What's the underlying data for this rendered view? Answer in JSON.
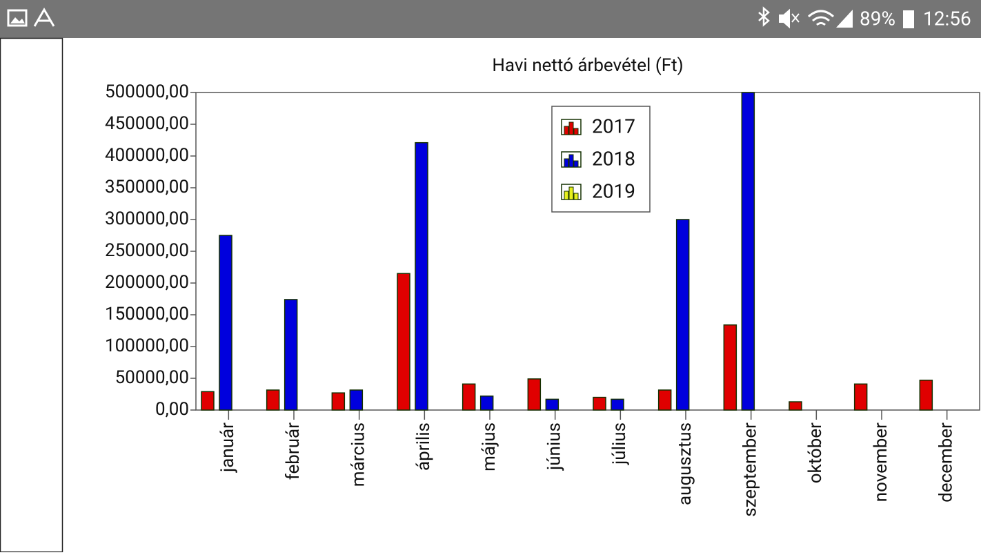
{
  "status_bar": {
    "battery": "89%",
    "time": "12:56"
  },
  "chart_data": {
    "type": "bar",
    "title": "Havi nettó árbevétel (Ft)",
    "categories": [
      "január",
      "február",
      "március",
      "április",
      "május",
      "június",
      "július",
      "augusztus",
      "szeptember",
      "október",
      "november",
      "december"
    ],
    "series": [
      {
        "name": "2017",
        "color": "#e00000",
        "values": [
          29000,
          31500,
          27000,
          215000,
          41000,
          49000,
          20000,
          31500,
          134000,
          13000,
          41000,
          47000
        ]
      },
      {
        "name": "2018",
        "color": "#0000dd",
        "values": [
          275000,
          174000,
          31500,
          421000,
          22000,
          17000,
          17000,
          300000,
          500000,
          0,
          0,
          0
        ]
      },
      {
        "name": "2019",
        "color": "#e6f01e",
        "values": [
          0,
          0,
          0,
          0,
          0,
          0,
          0,
          0,
          0,
          0,
          0,
          0
        ]
      }
    ],
    "ylim": [
      0,
      500000
    ],
    "yticks": [
      {
        "value": 0,
        "label": "0,00"
      },
      {
        "value": 50000,
        "label": "50000,00"
      },
      {
        "value": 100000,
        "label": "100000,00"
      },
      {
        "value": 150000,
        "label": "150000,00"
      },
      {
        "value": 200000,
        "label": "200000,00"
      },
      {
        "value": 250000,
        "label": "250000,00"
      },
      {
        "value": 300000,
        "label": "300000,00"
      },
      {
        "value": 350000,
        "label": "350000,00"
      },
      {
        "value": 400000,
        "label": "400000,00"
      },
      {
        "value": 450000,
        "label": "450000,00"
      },
      {
        "value": 500000,
        "label": "500000,00"
      }
    ],
    "legend": "top-center"
  }
}
